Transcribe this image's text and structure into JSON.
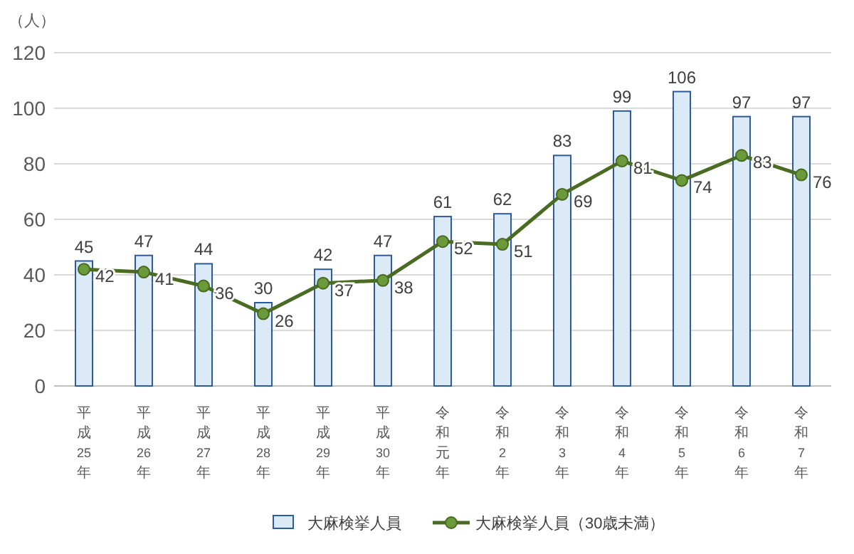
{
  "chart_data": {
    "type": "bar",
    "ylabel": "（人）",
    "categories": [
      "平成25年",
      "平成26年",
      "平成27年",
      "平成28年",
      "平成29年",
      "平成30年",
      "令和元年",
      "令和2年",
      "令和3年",
      "令和4年",
      "令和5年",
      "令和6年",
      "令和7年"
    ],
    "series": [
      {
        "name": "大麻検挙人員",
        "color": "#dce9f7",
        "values": [
          45,
          47,
          44,
          30,
          42,
          47,
          61,
          62,
          83,
          99,
          106,
          97,
          97
        ]
      },
      {
        "name": "大麻検挙人員（30歳未満）",
        "type": "line",
        "color": "#4a6b22",
        "values": [
          42,
          41,
          36,
          26,
          37,
          38,
          52,
          51,
          69,
          81,
          74,
          83,
          76
        ]
      }
    ],
    "ylim": [
      0,
      120
    ],
    "yticks": [
      0,
      20,
      40,
      60,
      80,
      100,
      120
    ],
    "grid": "y",
    "legend": "bottom",
    "marker": "circle",
    "data_labels": true
  }
}
